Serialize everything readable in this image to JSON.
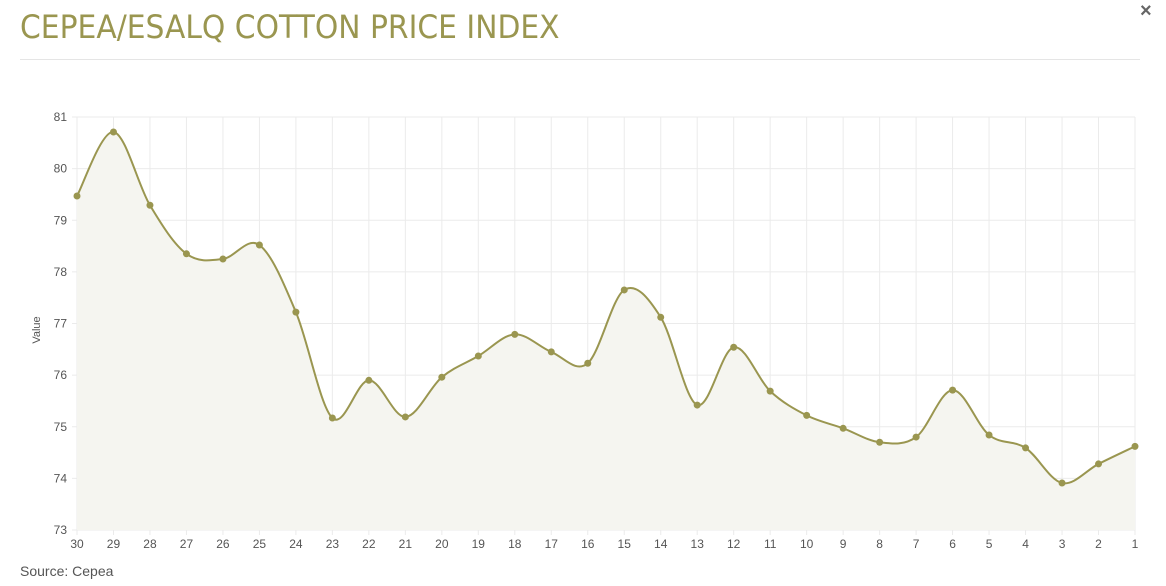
{
  "header": {
    "title": "CEPEA/ESALQ COTTON PRICE INDEX",
    "close_label": "×"
  },
  "footer": {
    "source": "Source: Cepea"
  },
  "colors": {
    "line": "#9a9650",
    "fill": "#f5f5f0",
    "grid": "#ebebeb",
    "title": "#9a9650"
  },
  "chart_data": {
    "type": "line",
    "title": "",
    "xlabel": "",
    "ylabel": "Value",
    "ylim": [
      73,
      81
    ],
    "yticks": [
      73,
      74,
      75,
      76,
      77,
      78,
      79,
      80,
      81
    ],
    "grid": true,
    "categories": [
      "30",
      "29",
      "28",
      "27",
      "26",
      "25",
      "24",
      "23",
      "22",
      "21",
      "20",
      "19",
      "18",
      "17",
      "16",
      "15",
      "14",
      "13",
      "12",
      "11",
      "10",
      "9",
      "8",
      "7",
      "6",
      "5",
      "4",
      "3",
      "2",
      "1"
    ],
    "values": [
      79.47,
      80.71,
      79.29,
      78.35,
      78.25,
      78.52,
      77.22,
      75.17,
      75.9,
      75.19,
      75.96,
      76.37,
      76.79,
      76.45,
      76.23,
      77.65,
      77.12,
      75.42,
      76.54,
      75.69,
      75.22,
      74.97,
      74.7,
      74.8,
      75.71,
      74.84,
      74.59,
      73.91,
      74.28,
      74.62
    ]
  }
}
